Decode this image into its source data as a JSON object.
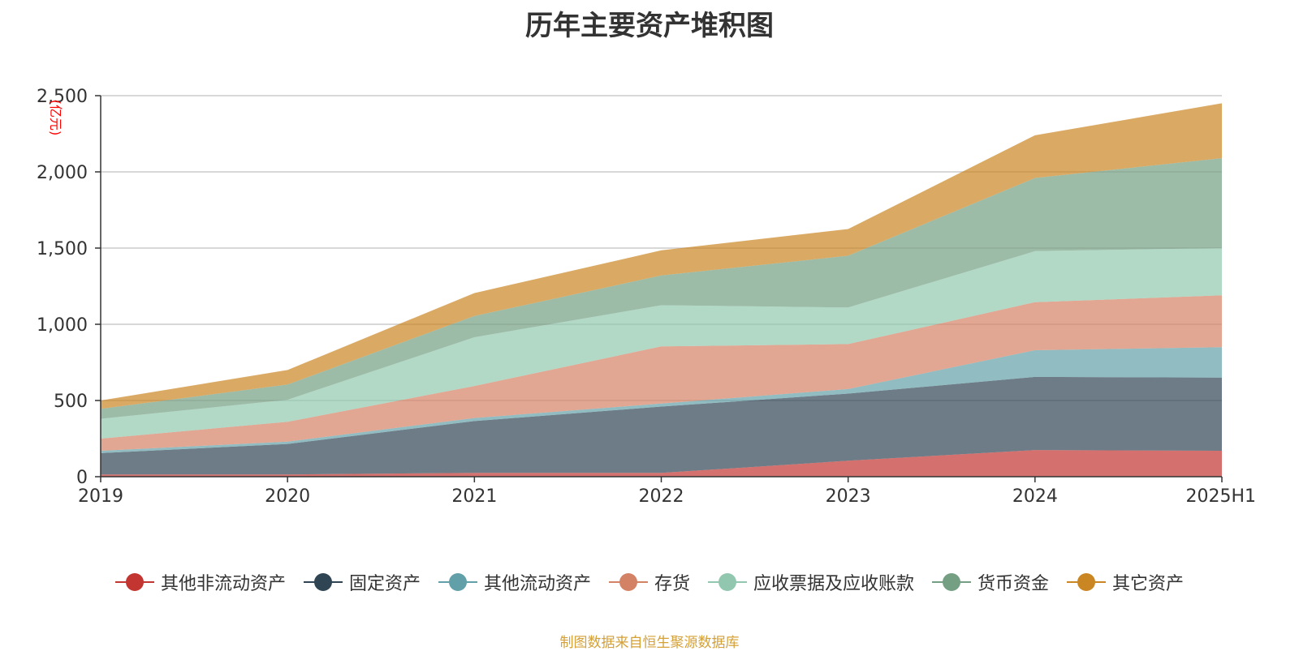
{
  "chart_data": {
    "type": "area",
    "stacked": true,
    "title": "历年主要资产堆积图",
    "ylabel": "(亿元)",
    "xlabel": "",
    "ylim": [
      0,
      2500
    ],
    "yticks": [
      0,
      500,
      1000,
      1500,
      2000,
      2500
    ],
    "ytick_labels": [
      "0",
      "500",
      "1,000",
      "1,500",
      "2,000",
      "2,500"
    ],
    "categories": [
      "2019",
      "2020",
      "2021",
      "2022",
      "2023",
      "2024",
      "2025H1"
    ],
    "grid": true,
    "legend_position": "bottom",
    "series": [
      {
        "name": "其他非流动资产",
        "color": "#c23531",
        "values": [
          15,
          15,
          25,
          25,
          105,
          175,
          170
        ]
      },
      {
        "name": "固定资产",
        "color": "#2f4554",
        "values": [
          140,
          200,
          340,
          435,
          440,
          480,
          480
        ]
      },
      {
        "name": "其他流动资产",
        "color": "#61a0a8",
        "values": [
          15,
          15,
          20,
          20,
          30,
          175,
          200
        ]
      },
      {
        "name": "存货",
        "color": "#d48265",
        "values": [
          80,
          130,
          210,
          375,
          295,
          315,
          340
        ]
      },
      {
        "name": "应收票据及应收账款",
        "color": "#91c7ae",
        "values": [
          130,
          145,
          320,
          270,
          240,
          335,
          310
        ]
      },
      {
        "name": "货币资金",
        "color": "#749f83",
        "values": [
          65,
          100,
          140,
          195,
          340,
          480,
          590
        ]
      },
      {
        "name": "其它资产",
        "color": "#ca8622",
        "values": [
          55,
          95,
          150,
          165,
          175,
          280,
          360
        ]
      }
    ],
    "source": "制图数据来自恒生聚源数据库"
  }
}
